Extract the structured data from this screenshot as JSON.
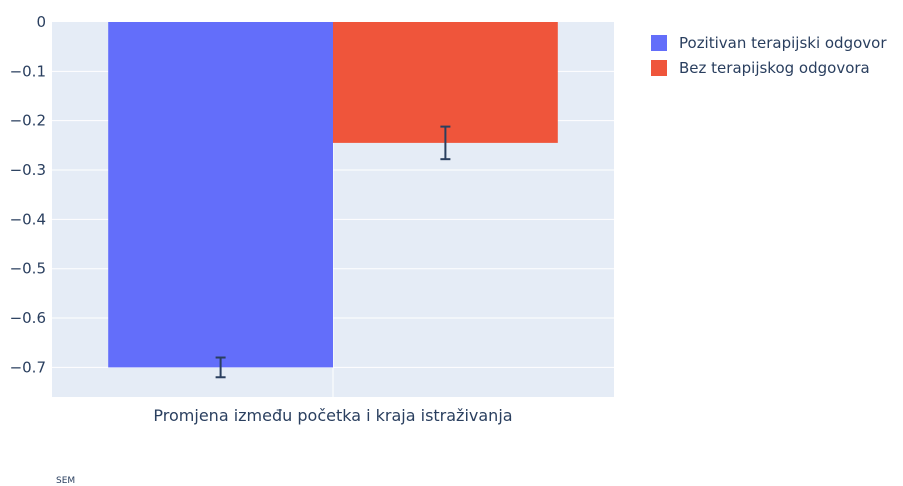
{
  "chart_data": {
    "type": "bar",
    "categories": [
      "Promjena između početka i kraja istraživanja"
    ],
    "series": [
      {
        "name": "Pozitivan terapijski odgovor",
        "values": [
          -0.7
        ],
        "error": [
          0.02
        ],
        "color": "#636efa"
      },
      {
        "name": "Bez terapijskog odgovora",
        "values": [
          -0.245
        ],
        "error": [
          0.033
        ],
        "color": "#ef553b"
      }
    ],
    "ylim": [
      -0.76,
      0
    ],
    "yticks": [
      0,
      -0.1,
      -0.2,
      -0.3,
      -0.4,
      -0.5,
      -0.6,
      -0.7
    ],
    "ytick_labels": [
      "0",
      "−0.1",
      "−0.2",
      "−0.3",
      "−0.4",
      "−0.5",
      "−0.6",
      "−0.7"
    ],
    "xlabel": "",
    "ylabel": "",
    "grid": true,
    "legend_position": "top-right",
    "background_color": "#e5ecf6",
    "error_bar_color": "#2a3f5f",
    "footnote": "SEM"
  }
}
